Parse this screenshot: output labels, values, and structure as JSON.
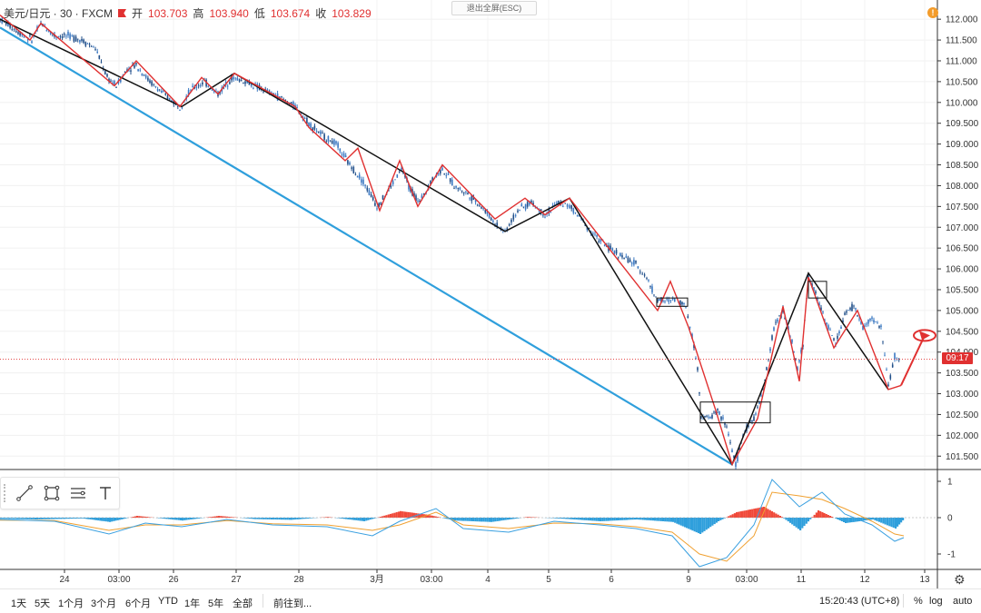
{
  "header": {
    "symbol": "美元/日元 · 30 · FXCM",
    "open_label": "开",
    "open_value": "103.703",
    "high_label": "高",
    "high_value": "103.940",
    "low_label": "低",
    "low_value": "103.674",
    "close_label": "收",
    "close_value": "103.829"
  },
  "esc_button": "退出全屏(ESC)",
  "alert_icon": "!",
  "toolbar": {
    "tools": [
      "trend-line-icon",
      "rectangle-icon",
      "fib-icon",
      "text-icon"
    ]
  },
  "timeframes": [
    "1天",
    "5天",
    "1个月",
    "3个月",
    "6个月",
    "YTD",
    "1年",
    "5年",
    "全部"
  ],
  "goto_label": "前往到...",
  "clock": "15:20:43 (UTC+8)",
  "scale_options": [
    "%",
    "log",
    "auto"
  ],
  "price_badge": "09:17",
  "colors": {
    "up": "#3a78c2",
    "down": "#1f4e89",
    "zigzag_red": "#e03030",
    "zigzag_black": "#111111",
    "trend_blue": "#2f9fdc",
    "macd_pos": "#f04a3a",
    "macd_neg": "#2f9fdc",
    "macd_line": "#3aa0e0",
    "signal_line": "#f0a030"
  },
  "chart_data": [
    {
      "type": "line",
      "title": "",
      "x_ticks": [
        "24",
        "03:00",
        "26",
        "27",
        "28",
        "3月",
        "03:00",
        "4",
        "5",
        "6",
        "9",
        "03:00",
        "11",
        "12",
        "13"
      ],
      "y_ticks": [
        "112.000",
        "111.500",
        "111.000",
        "110.500",
        "110.000",
        "109.500",
        "109.000",
        "108.500",
        "108.000",
        "107.500",
        "107.000",
        "106.500",
        "106.000",
        "105.500",
        "105.000",
        "104.500",
        "104.000",
        "103.500",
        "103.000",
        "102.500",
        "102.000",
        "101.500"
      ],
      "ylim": [
        101.2,
        112.2
      ],
      "last_price": 103.829,
      "price_path": [
        [
          0,
          112.0
        ],
        [
          20,
          111.7
        ],
        [
          35,
          111.5
        ],
        [
          45,
          111.9
        ],
        [
          60,
          111.6
        ],
        [
          75,
          111.6
        ],
        [
          90,
          111.5
        ],
        [
          105,
          111.3
        ],
        [
          118,
          110.6
        ],
        [
          128,
          110.4
        ],
        [
          140,
          110.8
        ],
        [
          150,
          110.9
        ],
        [
          165,
          110.5
        ],
        [
          180,
          110.2
        ],
        [
          198,
          109.9
        ],
        [
          210,
          110.3
        ],
        [
          225,
          110.5
        ],
        [
          240,
          110.2
        ],
        [
          255,
          110.6
        ],
        [
          270,
          110.5
        ],
        [
          290,
          110.3
        ],
        [
          310,
          110.1
        ],
        [
          325,
          109.9
        ],
        [
          340,
          109.5
        ],
        [
          355,
          109.2
        ],
        [
          370,
          109.0
        ],
        [
          385,
          108.5
        ],
        [
          400,
          108.1
        ],
        [
          415,
          107.5
        ],
        [
          428,
          107.9
        ],
        [
          442,
          108.4
        ],
        [
          452,
          107.9
        ],
        [
          462,
          107.6
        ],
        [
          474,
          108.1
        ],
        [
          487,
          108.4
        ],
        [
          500,
          108.0
        ],
        [
          515,
          107.8
        ],
        [
          530,
          107.5
        ],
        [
          545,
          107.1
        ],
        [
          556,
          106.9
        ],
        [
          570,
          107.4
        ],
        [
          585,
          107.6
        ],
        [
          600,
          107.3
        ],
        [
          615,
          107.6
        ],
        [
          627,
          107.5
        ],
        [
          640,
          107.2
        ],
        [
          655,
          106.8
        ],
        [
          670,
          106.5
        ],
        [
          685,
          106.3
        ],
        [
          700,
          106.1
        ],
        [
          712,
          105.8
        ],
        [
          722,
          105.3
        ],
        [
          732,
          105.2
        ],
        [
          745,
          105.3
        ],
        [
          755,
          105.1
        ],
        [
          762,
          104.4
        ],
        [
          768,
          103.6
        ],
        [
          772,
          102.5
        ],
        [
          780,
          102.4
        ],
        [
          790,
          102.6
        ],
        [
          800,
          102.2
        ],
        [
          810,
          101.3
        ],
        [
          818,
          102.0
        ],
        [
          826,
          102.3
        ],
        [
          834,
          102.6
        ],
        [
          842,
          103.3
        ],
        [
          852,
          104.6
        ],
        [
          862,
          105.0
        ],
        [
          870,
          104.4
        ],
        [
          878,
          103.6
        ],
        [
          884,
          104.2
        ],
        [
          890,
          105.8
        ],
        [
          900,
          105.3
        ],
        [
          910,
          104.7
        ],
        [
          920,
          104.2
        ],
        [
          930,
          104.9
        ],
        [
          940,
          105.1
        ],
        [
          950,
          104.6
        ],
        [
          960,
          104.8
        ],
        [
          970,
          104.6
        ],
        [
          978,
          103.2
        ],
        [
          985,
          103.9
        ],
        [
          992,
          103.8
        ]
      ],
      "red_zigzag": [
        [
          0,
          112.1
        ],
        [
          33,
          111.5
        ],
        [
          45,
          111.9
        ],
        [
          126,
          110.4
        ],
        [
          150,
          111.0
        ],
        [
          198,
          109.9
        ],
        [
          222,
          110.6
        ],
        [
          240,
          110.2
        ],
        [
          258,
          110.7
        ],
        [
          325,
          109.9
        ],
        [
          340,
          109.4
        ],
        [
          380,
          108.6
        ],
        [
          394,
          108.9
        ],
        [
          418,
          107.4
        ],
        [
          440,
          108.6
        ],
        [
          460,
          107.5
        ],
        [
          487,
          108.5
        ],
        [
          545,
          107.2
        ],
        [
          578,
          107.7
        ],
        [
          600,
          107.3
        ],
        [
          627,
          107.7
        ],
        [
          724,
          105.0
        ],
        [
          738,
          105.7
        ],
        [
          758,
          104.6
        ],
        [
          788,
          102.6
        ],
        [
          806,
          101.3
        ],
        [
          834,
          102.4
        ],
        [
          862,
          105.1
        ],
        [
          880,
          103.3
        ],
        [
          890,
          105.8
        ],
        [
          918,
          104.1
        ],
        [
          944,
          105.0
        ],
        [
          978,
          103.1
        ],
        [
          992,
          103.2
        ]
      ],
      "black_zigzag": [
        [
          0,
          112.0
        ],
        [
          200,
          109.9
        ],
        [
          258,
          110.7
        ],
        [
          556,
          106.9
        ],
        [
          627,
          107.7
        ],
        [
          806,
          101.3
        ],
        [
          890,
          105.9
        ],
        [
          978,
          103.1
        ]
      ],
      "blue_trendline": [
        [
          0,
          111.8
        ],
        [
          806,
          101.3
        ]
      ],
      "arrow_end": [
        1018,
        104.4
      ],
      "boxes": [
        [
          723,
          105.3,
          757,
          105.1
        ],
        [
          771,
          102.8,
          848,
          102.3
        ],
        [
          890,
          105.7,
          910,
          105.3
        ]
      ]
    },
    {
      "type": "area",
      "title": "",
      "y_ticks": [
        "1",
        "0",
        "-1"
      ],
      "ylim": [
        -1.4,
        1.2
      ],
      "macd": [
        [
          0,
          -0.03
        ],
        [
          40,
          -0.05
        ],
        [
          90,
          -0.02
        ],
        [
          120,
          -0.12
        ],
        [
          150,
          0.05
        ],
        [
          200,
          -0.08
        ],
        [
          240,
          0.05
        ],
        [
          280,
          -0.04
        ],
        [
          320,
          -0.06
        ],
        [
          360,
          0.02
        ],
        [
          400,
          -0.1
        ],
        [
          440,
          0.18
        ],
        [
          470,
          0.08
        ],
        [
          500,
          -0.08
        ],
        [
          540,
          -0.12
        ],
        [
          580,
          0.02
        ],
        [
          620,
          -0.03
        ],
        [
          660,
          -0.1
        ],
        [
          700,
          -0.05
        ],
        [
          740,
          -0.12
        ],
        [
          770,
          -0.45
        ],
        [
          790,
          -0.1
        ],
        [
          810,
          0.15
        ],
        [
          840,
          0.3
        ],
        [
          860,
          0.02
        ],
        [
          880,
          -0.35
        ],
        [
          900,
          0.2
        ],
        [
          930,
          -0.15
        ],
        [
          960,
          -0.05
        ],
        [
          985,
          -0.3
        ],
        [
          995,
          -0.02
        ]
      ],
      "macd_line": [
        [
          0,
          -0.05
        ],
        [
          60,
          -0.1
        ],
        [
          120,
          -0.45
        ],
        [
          160,
          -0.15
        ],
        [
          200,
          -0.25
        ],
        [
          250,
          -0.05
        ],
        [
          300,
          -0.2
        ],
        [
          360,
          -0.25
        ],
        [
          410,
          -0.5
        ],
        [
          440,
          -0.1
        ],
        [
          480,
          0.25
        ],
        [
          510,
          -0.3
        ],
        [
          560,
          -0.4
        ],
        [
          610,
          -0.1
        ],
        [
          660,
          -0.2
        ],
        [
          700,
          -0.3
        ],
        [
          740,
          -0.5
        ],
        [
          770,
          -1.35
        ],
        [
          800,
          -1.1
        ],
        [
          830,
          -0.2
        ],
        [
          850,
          1.05
        ],
        [
          880,
          0.3
        ],
        [
          905,
          0.7
        ],
        [
          930,
          0.1
        ],
        [
          960,
          -0.2
        ],
        [
          985,
          -0.65
        ],
        [
          995,
          -0.55
        ]
      ],
      "signal_line": [
        [
          0,
          -0.07
        ],
        [
          60,
          -0.08
        ],
        [
          120,
          -0.35
        ],
        [
          160,
          -0.2
        ],
        [
          200,
          -0.2
        ],
        [
          250,
          -0.08
        ],
        [
          300,
          -0.17
        ],
        [
          360,
          -0.2
        ],
        [
          410,
          -0.35
        ],
        [
          440,
          -0.2
        ],
        [
          480,
          0.15
        ],
        [
          510,
          -0.2
        ],
        [
          560,
          -0.3
        ],
        [
          610,
          -0.15
        ],
        [
          660,
          -0.17
        ],
        [
          700,
          -0.25
        ],
        [
          740,
          -0.4
        ],
        [
          770,
          -1.0
        ],
        [
          800,
          -1.2
        ],
        [
          830,
          -0.5
        ],
        [
          850,
          0.7
        ],
        [
          880,
          0.6
        ],
        [
          905,
          0.5
        ],
        [
          930,
          0.25
        ],
        [
          960,
          -0.1
        ],
        [
          985,
          -0.45
        ],
        [
          995,
          -0.5
        ]
      ]
    }
  ]
}
